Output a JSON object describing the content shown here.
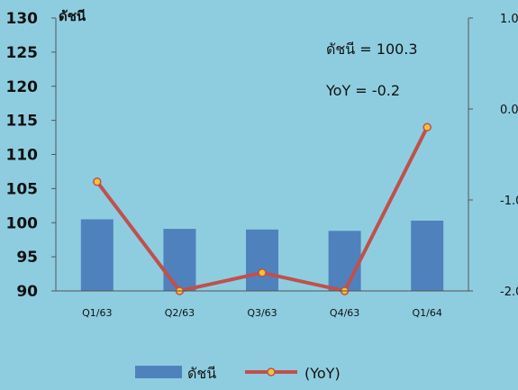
{
  "chart_data": {
    "type": "bar",
    "categories": [
      "Q1/63",
      "Q2/63",
      "Q3/63",
      "Q4/63",
      "Q1/64"
    ],
    "series": [
      {
        "name": "ดัชนี",
        "type": "bar",
        "axis": "left",
        "values": [
          100.5,
          99.1,
          99.0,
          98.8,
          100.3
        ],
        "color": "#4f81bd"
      },
      {
        "name": "(YoY)",
        "type": "line",
        "axis": "right",
        "values": [
          -0.8,
          -2.0,
          -1.8,
          -2.0,
          -0.2
        ],
        "color": "#c0504d",
        "marker_color": "#f4c430"
      }
    ],
    "y_left": {
      "label": "ดัชนี",
      "ylim": [
        90,
        130
      ],
      "ticks": [
        "90",
        "95",
        "100",
        "105",
        "110",
        "115",
        "120",
        "125",
        "130"
      ]
    },
    "y_right": {
      "ylim": [
        -2.0,
        1.0
      ],
      "ticks": [
        "-2.0",
        "-1.0",
        "0.0",
        "1.0"
      ]
    },
    "annotations": [
      "ดัชนี = 100.3",
      "YoY = -0.2"
    ],
    "grid": false,
    "legend": "bottom"
  }
}
